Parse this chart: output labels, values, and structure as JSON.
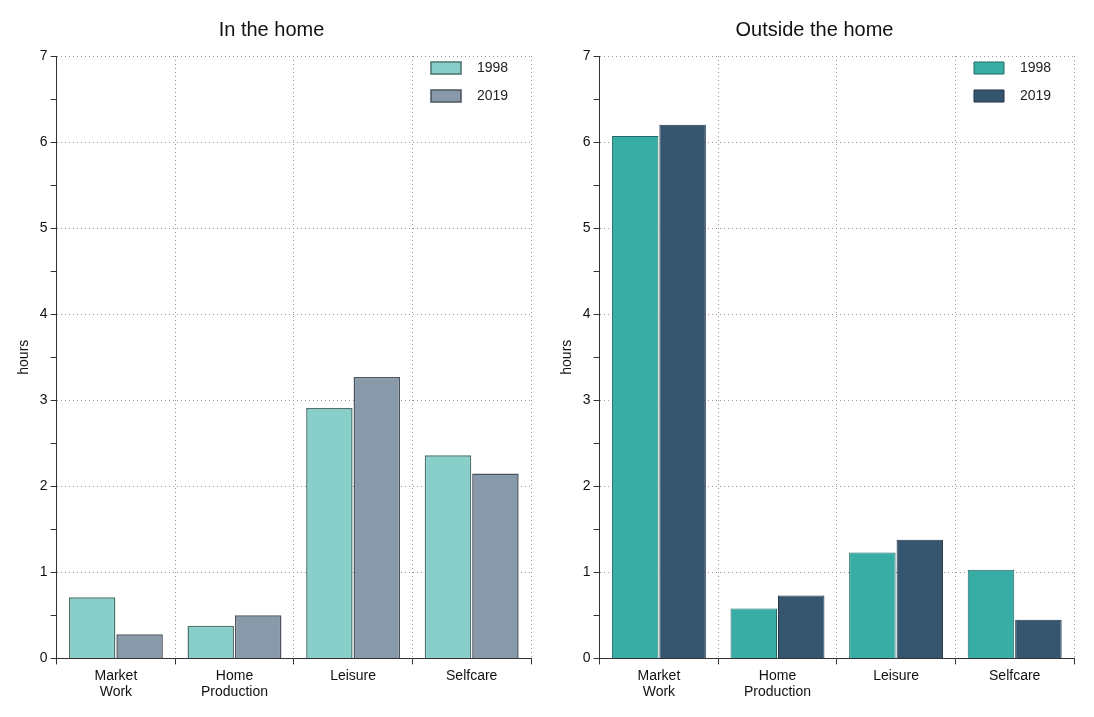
{
  "chart_data": [
    {
      "type": "bar",
      "title": "In the home",
      "ylabel": "hours",
      "categories": [
        "Market Work",
        "Home Production",
        "Leisure",
        "Selfcare"
      ],
      "series": [
        {
          "name": "1998",
          "color": "#88cfca",
          "values": [
            0.71,
            0.38,
            2.91,
            2.36
          ]
        },
        {
          "name": "2019",
          "color": "#8899aa",
          "values": [
            0.28,
            0.5,
            3.27,
            2.15
          ]
        }
      ],
      "ylim": [
        0,
        7
      ],
      "yticks": [
        0,
        {
          "value": 0.5,
          "label": null
        },
        1,
        {
          "value": 1.5,
          "label": null
        },
        2,
        {
          "value": 2.5,
          "label": null
        },
        3,
        {
          "value": 3.5,
          "label": null
        },
        4,
        {
          "value": 4.5,
          "label": null
        },
        5,
        {
          "value": 5.5,
          "label": null
        },
        6,
        {
          "value": 6.5,
          "label": null
        },
        7
      ],
      "grid": true,
      "legend": "top right"
    },
    {
      "type": "bar",
      "title": "Outside the home",
      "ylabel": "hours",
      "categories": [
        "Market Work",
        "Home Production",
        "Leisure",
        "Selfcare"
      ],
      "series": [
        {
          "name": "1998",
          "color": "#38ada6",
          "values": [
            6.07,
            0.58,
            1.23,
            1.03
          ]
        },
        {
          "name": "2019",
          "color": "#36556f",
          "values": [
            6.2,
            0.73,
            1.38,
            0.45
          ]
        }
      ],
      "ylim": [
        0,
        7
      ],
      "yticks": [
        0,
        {
          "value": 0.5,
          "label": null
        },
        1,
        {
          "value": 1.5,
          "label": null
        },
        2,
        {
          "value": 2.5,
          "label": null
        },
        3,
        {
          "value": 3.5,
          "label": null
        },
        4,
        {
          "value": 4.5,
          "label": null
        },
        5,
        {
          "value": 5.5,
          "label": null
        },
        6,
        {
          "value": 6.5,
          "label": null
        },
        7
      ],
      "grid": true,
      "legend": "top right"
    }
  ]
}
